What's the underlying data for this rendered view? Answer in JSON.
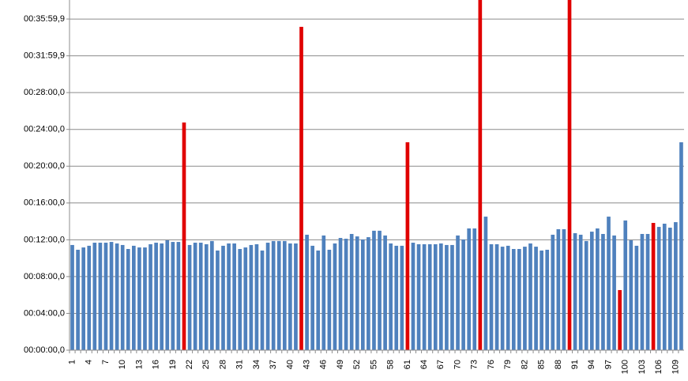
{
  "chart_data": {
    "type": "bar",
    "categories": [
      "1",
      null,
      null,
      "4",
      null,
      null,
      "7",
      null,
      null,
      "10",
      null,
      null,
      "13",
      null,
      null,
      "16",
      null,
      null,
      "19",
      null,
      null,
      "22",
      null,
      null,
      "25",
      null,
      null,
      "28",
      null,
      null,
      "31",
      null,
      null,
      "34",
      null,
      null,
      "37",
      null,
      null,
      "40",
      null,
      null,
      "43",
      null,
      null,
      "46",
      null,
      null,
      "49",
      null,
      null,
      "52",
      null,
      null,
      "55",
      null,
      null,
      "58",
      null,
      null,
      "61",
      null,
      null,
      "64",
      null,
      null,
      "67",
      null,
      null,
      "70",
      null,
      null,
      "73",
      null,
      null,
      "76",
      null,
      null,
      "79",
      null,
      null,
      "82",
      null,
      null,
      "85",
      null,
      null,
      "88",
      null,
      null,
      "91",
      null,
      null,
      "94",
      null,
      null,
      "97",
      null,
      null,
      "100",
      null,
      null,
      "103",
      null,
      null,
      "106",
      null,
      null,
      "109",
      null
    ],
    "values": [
      686,
      655,
      670,
      681,
      701,
      701,
      701,
      706,
      696,
      686,
      660,
      681,
      670,
      670,
      691,
      701,
      696,
      717,
      706,
      706,
      1485,
      686,
      701,
      701,
      691,
      712,
      650,
      681,
      696,
      696,
      660,
      670,
      686,
      691,
      650,
      701,
      712,
      712,
      712,
      696,
      696,
      2109,
      753,
      681,
      650,
      748,
      655,
      696,
      732,
      727,
      758,
      742,
      722,
      737,
      779,
      779,
      748,
      696,
      681,
      681,
      1356,
      701,
      691,
      691,
      691,
      691,
      696,
      686,
      686,
      748,
      722,
      794,
      794,
      2300,
      871,
      691,
      691,
      675,
      681,
      660,
      660,
      675,
      696,
      675,
      650,
      655,
      753,
      789,
      789,
      2300,
      763,
      753,
      712,
      773,
      794,
      758,
      871,
      748,
      392,
      846,
      717,
      681,
      758,
      758,
      830,
      804,
      825,
      799,
      835,
      1356
    ],
    "colors": [
      "#4f81bd",
      "#4f81bd",
      "#4f81bd",
      "#4f81bd",
      "#4f81bd",
      "#4f81bd",
      "#4f81bd",
      "#4f81bd",
      "#4f81bd",
      "#4f81bd",
      "#4f81bd",
      "#4f81bd",
      "#4f81bd",
      "#4f81bd",
      "#4f81bd",
      "#4f81bd",
      "#4f81bd",
      "#4f81bd",
      "#4f81bd",
      "#4f81bd",
      "#e00000",
      "#4f81bd",
      "#4f81bd",
      "#4f81bd",
      "#4f81bd",
      "#4f81bd",
      "#4f81bd",
      "#4f81bd",
      "#4f81bd",
      "#4f81bd",
      "#4f81bd",
      "#4f81bd",
      "#4f81bd",
      "#4f81bd",
      "#4f81bd",
      "#4f81bd",
      "#4f81bd",
      "#4f81bd",
      "#4f81bd",
      "#4f81bd",
      "#4f81bd",
      "#e00000",
      "#4f81bd",
      "#4f81bd",
      "#4f81bd",
      "#4f81bd",
      "#4f81bd",
      "#4f81bd",
      "#4f81bd",
      "#4f81bd",
      "#4f81bd",
      "#4f81bd",
      "#4f81bd",
      "#4f81bd",
      "#4f81bd",
      "#4f81bd",
      "#4f81bd",
      "#4f81bd",
      "#4f81bd",
      "#4f81bd",
      "#e00000",
      "#4f81bd",
      "#4f81bd",
      "#4f81bd",
      "#4f81bd",
      "#4f81bd",
      "#4f81bd",
      "#4f81bd",
      "#4f81bd",
      "#4f81bd",
      "#4f81bd",
      "#4f81bd",
      "#4f81bd",
      "#e00000",
      "#4f81bd",
      "#4f81bd",
      "#4f81bd",
      "#4f81bd",
      "#4f81bd",
      "#4f81bd",
      "#4f81bd",
      "#4f81bd",
      "#4f81bd",
      "#4f81bd",
      "#4f81bd",
      "#4f81bd",
      "#4f81bd",
      "#4f81bd",
      "#4f81bd",
      "#e00000",
      "#4f81bd",
      "#4f81bd",
      "#4f81bd",
      "#4f81bd",
      "#4f81bd",
      "#4f81bd",
      "#4f81bd",
      "#4f81bd",
      "#e00000",
      "#4f81bd",
      "#4f81bd",
      "#4f81bd",
      "#4f81bd",
      "#4f81bd",
      "#e00000",
      "#4f81bd",
      "#4f81bd",
      "#4f81bd",
      "#4f81bd",
      "#4f81bd"
    ],
    "ylim": [
      0,
      2284
    ],
    "yticks": [
      {
        "value": 0,
        "label": "00:00:00,0"
      },
      {
        "value": 240,
        "label": "00:04:00,0"
      },
      {
        "value": 480,
        "label": "00:08:00,0"
      },
      {
        "value": 720,
        "label": "00:12:00,0"
      },
      {
        "value": 960,
        "label": "00:16:00,0"
      },
      {
        "value": 1200,
        "label": "00:20:00,0"
      },
      {
        "value": 1440,
        "label": "00:24:00,0"
      },
      {
        "value": 1680,
        "label": "00:28:00,0"
      },
      {
        "value": 1919.9,
        "label": "00:31:59,9"
      },
      {
        "value": 2159.9,
        "label": "00:35:59,9"
      }
    ],
    "grid": true
  }
}
